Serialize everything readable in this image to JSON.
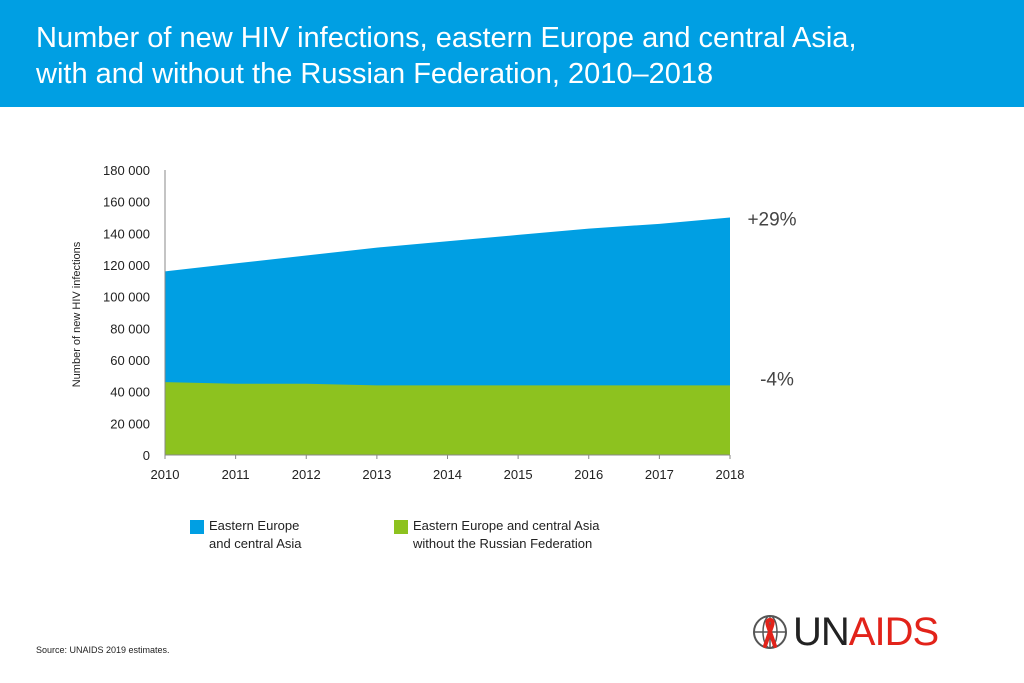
{
  "header": {
    "title_line1": "Number of new HIV infections, eastern Europe and central Asia,",
    "title_line2": "with and without the Russian Federation, 2010–2018"
  },
  "colors": {
    "header_bg": "#009fe3",
    "series_total": "#009fe3",
    "series_excl_russia": "#8dc21f",
    "logo_red": "#e2231a"
  },
  "chart_data": {
    "type": "area",
    "title": "Number of new HIV infections, eastern Europe and central Asia, with and without the Russian Federation, 2010–2018",
    "xlabel": "",
    "ylabel": "Number of new HIV infections",
    "x": [
      "2010",
      "2011",
      "2012",
      "2013",
      "2014",
      "2015",
      "2016",
      "2017",
      "2018"
    ],
    "ylim": [
      0,
      180000
    ],
    "yticks": [
      "0",
      "20 000",
      "40 000",
      "60 000",
      "80 000",
      "100 000",
      "120 000",
      "140 000",
      "160 000",
      "180 000"
    ],
    "series": [
      {
        "name": "Eastern Europe and central Asia",
        "color": "#009fe3",
        "values": [
          116000,
          121000,
          126000,
          131000,
          135000,
          139000,
          143000,
          146000,
          150000
        ]
      },
      {
        "name": "Eastern Europe and central Asia without the Russian Federation",
        "color": "#8dc21f",
        "values": [
          46000,
          45000,
          45000,
          44000,
          44000,
          44000,
          44000,
          44000,
          44000
        ]
      }
    ],
    "annotations": [
      {
        "text": "+29%",
        "series": 0
      },
      {
        "text": "-4%",
        "series": 1
      }
    ],
    "grid": false,
    "legend_position": "bottom"
  },
  "legend": {
    "total_line1": "Eastern Europe",
    "total_line2": "and central Asia",
    "excl_line1": "Eastern Europe and central Asia",
    "excl_line2": "without the Russian Federation"
  },
  "source": "Source: UNAIDS 2019 estimates.",
  "logo": {
    "part1": "UN",
    "part2": "AIDS",
    "emblem": "unaids-emblem-icon"
  }
}
